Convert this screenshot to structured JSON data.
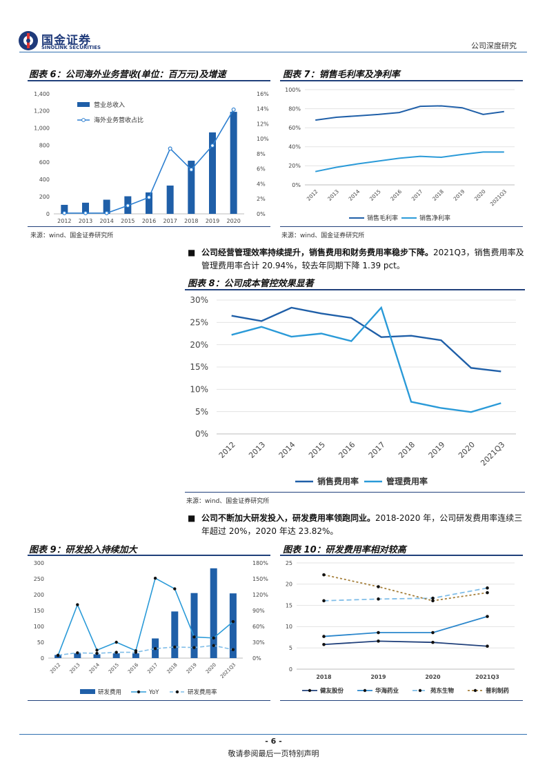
{
  "header": {
    "logo_cn": "国金证券",
    "logo_en": "SINOLINK SECURITIES",
    "doc_type": "公司深度研究"
  },
  "figures": {
    "fig6": {
      "title": "图表 6：公司海外业务营收(单位：百万元)及增速"
    },
    "fig7": {
      "title": "图表 7：销售毛利率及净利率"
    },
    "fig8": {
      "title": "图表 8：公司成本管控效果显著"
    },
    "fig9": {
      "title": "图表 9：研发投入持续加大"
    },
    "fig10": {
      "title": "图表 10：研发费用率相对较高"
    }
  },
  "sources": {
    "s1": "来源：wind、国金证券研究所",
    "s2": "来源：wind、国金证券研究所",
    "s3": "来源：wind、国金证券研究所"
  },
  "bullets": {
    "b1_bold": "公司经营管理效率持续提升，销售费用和财务费用率稳步下降。",
    "b1_text": "2021Q3，销售费用率及管理费用率合计 20.94%，较去年同期下降 1.39 pct。",
    "b2_bold": "公司不断加大研发投入，研发费用率领跑同业。",
    "b2_text": "2018-2020 年，公司研发费用率连续三年超过 20%，2020 年达 23.82%。"
  },
  "footer": {
    "page": "- 6 -",
    "note": "敬请参阅最后一页特别声明"
  },
  "chart_data": [
    {
      "id": "fig6",
      "type": "bar+line",
      "categories": [
        "2012",
        "2013",
        "2014",
        "2015",
        "2016",
        "2017",
        "2018",
        "2019",
        "2020"
      ],
      "series": [
        {
          "name": "营业总收入",
          "kind": "bar",
          "axis": "left",
          "values": [
            105,
            130,
            165,
            205,
            250,
            330,
            620,
            950,
            1190
          ]
        },
        {
          "name": "海外业务营收占比",
          "kind": "line",
          "axis": "right",
          "values": [
            0.1,
            0.1,
            0.1,
            1.1,
            2.2,
            8.7,
            5.9,
            9.1,
            13.9
          ]
        }
      ],
      "y_left": {
        "min": 0,
        "max": 1400,
        "ticks": [
          "0",
          "200",
          "400",
          "600",
          "800",
          "1,000",
          "1,200",
          "1,400"
        ]
      },
      "y_right": {
        "min": 0,
        "max": 16,
        "ticks": [
          "0%",
          "2%",
          "4%",
          "6%",
          "8%",
          "10%",
          "12%",
          "14%",
          "16%"
        ]
      },
      "legend": "top-left",
      "colors": {
        "bar": "#1f5fa8",
        "line": "#2d7fd0"
      }
    },
    {
      "id": "fig7",
      "type": "line",
      "categories": [
        "2012",
        "2013",
        "2014",
        "2015",
        "2016",
        "2017",
        "2018",
        "2019",
        "2020",
        "2021Q3"
      ],
      "series": [
        {
          "name": "销售毛利率",
          "values": [
            68,
            71,
            72.5,
            74,
            76,
            82.5,
            83,
            81,
            74,
            77
          ]
        },
        {
          "name": "销售净利率",
          "values": [
            14,
            18.5,
            22,
            25,
            28,
            30,
            29,
            32,
            34.5,
            34.5
          ]
        }
      ],
      "y": {
        "min": 0,
        "max": 100,
        "ticks": [
          "0%",
          "20%",
          "40%",
          "60%",
          "80%",
          "100%"
        ]
      },
      "legend": "bottom",
      "colors": [
        "#1f5fa8",
        "#2a9ad8"
      ]
    },
    {
      "id": "fig8",
      "type": "line",
      "categories": [
        "2012",
        "2013",
        "2014",
        "2015",
        "2016",
        "2017",
        "2018",
        "2019",
        "2020",
        "2021Q3"
      ],
      "series": [
        {
          "name": "销售费用率",
          "values": [
            26.5,
            25.3,
            28.3,
            27,
            26,
            21.7,
            22,
            21,
            14.8,
            14
          ]
        },
        {
          "name": "管理费用率",
          "values": [
            22.2,
            24,
            21.8,
            22.5,
            20.8,
            28.3,
            7.2,
            5.8,
            4.9,
            6.9
          ]
        }
      ],
      "y": {
        "min": 0,
        "max": 30,
        "ticks": [
          "0%",
          "5%",
          "10%",
          "15%",
          "20%",
          "25%",
          "30%"
        ]
      },
      "legend": "bottom",
      "colors": [
        "#1f5fa8",
        "#2a9ad8"
      ]
    },
    {
      "id": "fig9",
      "type": "bar+line",
      "categories": [
        "2012",
        "2013",
        "2014",
        "2015",
        "2016",
        "2017",
        "2018",
        "2019",
        "2020",
        "2021Q3"
      ],
      "series": [
        {
          "name": "研发费用",
          "kind": "bar",
          "axis": "left",
          "values": [
            10,
            15,
            12,
            15,
            15,
            62,
            147,
            205,
            283,
            204
          ]
        },
        {
          "name": "YoY",
          "kind": "line",
          "axis": "right",
          "values": [
            5,
            101,
            15,
            30,
            14,
            151,
            131,
            40,
            38,
            69
          ]
        },
        {
          "name": "研发费用率",
          "kind": "dashed-line",
          "axis": "right",
          "values": [
            5.5,
            10,
            9,
            11,
            11,
            18,
            21,
            20,
            23.8,
            16
          ]
        }
      ],
      "y_left": {
        "min": 0,
        "max": 300,
        "ticks": [
          "0",
          "50",
          "100",
          "150",
          "200",
          "250",
          "300"
        ]
      },
      "y_right": {
        "min": 0,
        "max": 180,
        "ticks": [
          "0%",
          "30%",
          "60%",
          "90%",
          "120%",
          "150%",
          "180%"
        ]
      },
      "legend": "bottom",
      "colors": {
        "bar": "#1f5fa8",
        "yoy": "#2a9ad8",
        "rate": "#7fbde8"
      }
    },
    {
      "id": "fig10",
      "type": "line",
      "categories": [
        "2018",
        "2019",
        "2020",
        "2021Q3"
      ],
      "series": [
        {
          "name": "健友股份",
          "style": "solid",
          "values": [
            5.8,
            6.6,
            6.3,
            5.4
          ]
        },
        {
          "name": "华海药业",
          "style": "solid",
          "values": [
            7.7,
            8.6,
            8.6,
            12.4
          ]
        },
        {
          "name": "苑东生物",
          "style": "dashed",
          "values": [
            16.1,
            16.5,
            16.7,
            19.1
          ]
        },
        {
          "name": "普利制药",
          "style": "dotted",
          "values": [
            22.2,
            19.4,
            16.1,
            18
          ]
        }
      ],
      "y": {
        "min": 0,
        "max": 25,
        "ticks": [
          "0",
          "5",
          "10",
          "15",
          "20",
          "25"
        ]
      },
      "legend": "bottom",
      "colors": [
        "#1f3f7a",
        "#2a86cc",
        "#7fbde8",
        "#a57f3a"
      ]
    }
  ]
}
